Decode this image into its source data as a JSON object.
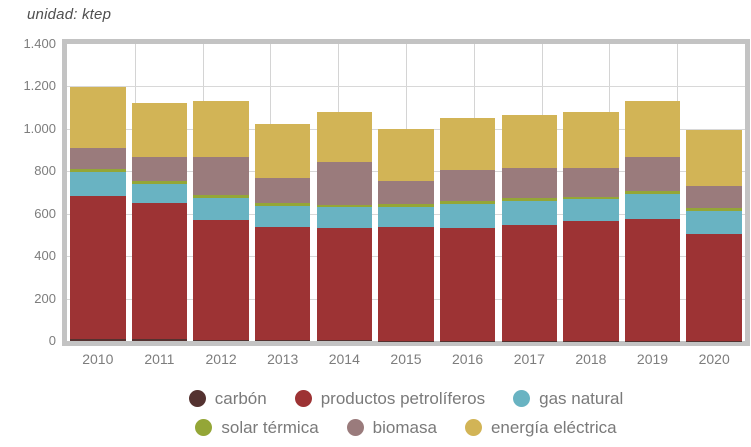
{
  "title": "unidad: ktep",
  "chart_data": {
    "type": "bar",
    "stacked": true,
    "unit": "ktep",
    "title": "unidad: ktep",
    "xlabel": "",
    "ylabel": "",
    "ylim": [
      0,
      1400
    ],
    "yticks": [
      "0",
      "200",
      "400",
      "600",
      "800",
      "1.000",
      "1.200",
      "1.400"
    ],
    "grid": true,
    "legend_position": "bottom",
    "categories": [
      "2010",
      "2011",
      "2012",
      "2013",
      "2014",
      "2015",
      "2016",
      "2017",
      "2018",
      "2019",
      "2020"
    ],
    "series": [
      {
        "name": "carbón",
        "color": "#543230",
        "values": [
          8,
          8,
          5,
          3,
          3,
          2,
          2,
          2,
          2,
          2,
          2
        ]
      },
      {
        "name": "productos petrolíferos",
        "color": "#9d3334",
        "values": [
          675,
          642,
          564,
          534,
          530,
          538,
          530,
          543,
          563,
          575,
          501
        ]
      },
      {
        "name": "gas natural",
        "color": "#69b3c2",
        "values": [
          114,
          89,
          105,
          101,
          97,
          94,
          113,
          115,
          104,
          114,
          110
        ]
      },
      {
        "name": "solar térmica",
        "color": "#94a637",
        "values": [
          13,
          13,
          13,
          12,
          12,
          13,
          13,
          14,
          12,
          14,
          15
        ]
      },
      {
        "name": "biomasa",
        "color": "#9a7b7c",
        "values": [
          100,
          113,
          180,
          118,
          204,
          110,
          146,
          141,
          133,
          164,
          104
        ]
      },
      {
        "name": "energía eléctrica",
        "color": "#d2b456",
        "values": [
          285,
          258,
          265,
          255,
          235,
          241,
          246,
          250,
          264,
          260,
          263
        ]
      }
    ],
    "totals": [
      1195,
      1123,
      1132,
      1023,
      1081,
      998,
      1050,
      1065,
      1078,
      1129,
      995
    ],
    "colors": {
      "frame": "#c3c3c3",
      "gridline": "#d8d8d8",
      "axis_text": "#7d7d7d",
      "legend_text": "#7a7a7a",
      "title_text": "#4f4f4f"
    }
  }
}
